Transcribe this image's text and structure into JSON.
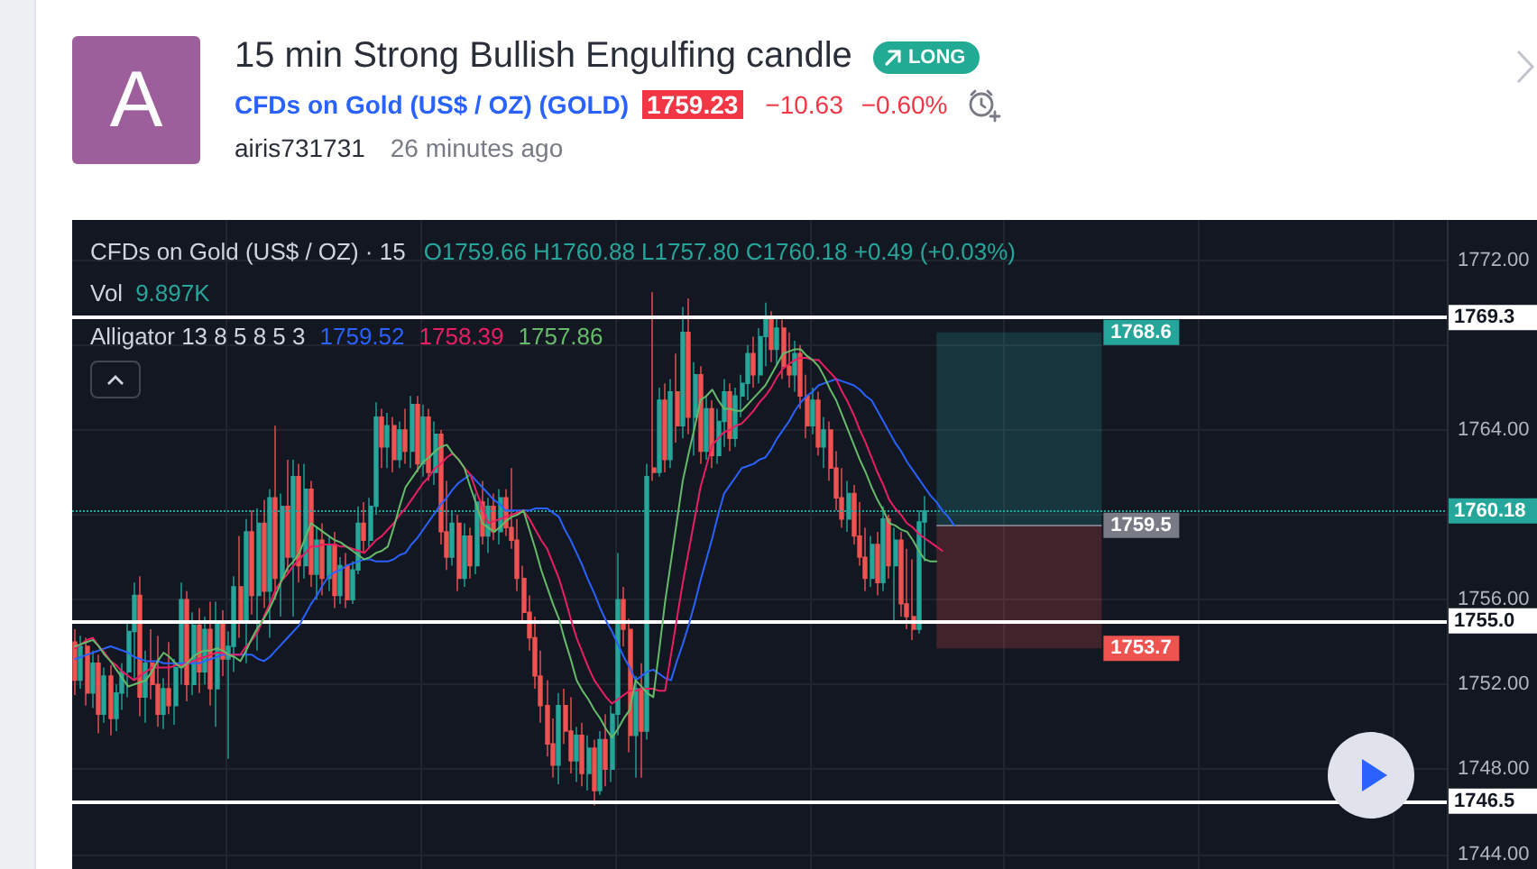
{
  "chart_data": {
    "type": "candlestick",
    "title": "15 min Strong Bullish Engulfing candle",
    "subtitle": "CFDs on Gold (US$ / OZ) (GOLD)",
    "annotations": [
      "A",
      "LONG",
      "1759.23",
      "−10.63",
      "−0.60%",
      "airis731731",
      "26 minutes ago",
      "CFDs on Gold (US$ / OZ) · 15",
      "O1759.66 H1760.88 L1757.80 C1760.18 +0.49 (+0.03%)",
      "Vol 9.897K",
      "Alligator 13 8 5 8 5 3",
      "1759.52",
      "1758.39",
      "1757.86"
    ],
    "categories": [
      null,
      null,
      null,
      null,
      null,
      null,
      null,
      null,
      null,
      null,
      null,
      null,
      null,
      null,
      null,
      null,
      null,
      null,
      null,
      null,
      null,
      null,
      null,
      null,
      null,
      null,
      null,
      null,
      null,
      null,
      null,
      null,
      null,
      null,
      null,
      null,
      null,
      null,
      null,
      null,
      null,
      null,
      null,
      null,
      null,
      null,
      null,
      null,
      null,
      null,
      null,
      null,
      null,
      null,
      null,
      null,
      null,
      null,
      null,
      null,
      null,
      null,
      null,
      null,
      null,
      null,
      null,
      null,
      null,
      null,
      null,
      null,
      null,
      null,
      null,
      null,
      null,
      null,
      null,
      null,
      null,
      null,
      null,
      null,
      null,
      null,
      null,
      null,
      null,
      null,
      null,
      null,
      null,
      null,
      null,
      null,
      null,
      null,
      null,
      null,
      null,
      null,
      null,
      null,
      null,
      null,
      null,
      null,
      null,
      null,
      null,
      null,
      null,
      null,
      null,
      null,
      null,
      null,
      null,
      null,
      null,
      null,
      null,
      null,
      null,
      null,
      null,
      null,
      null,
      null,
      null,
      null,
      null,
      null,
      null,
      null,
      null,
      null,
      null,
      null,
      null,
      null,
      null,
      null,
      null,
      null,
      null,
      null,
      null,
      null,
      null,
      null,
      null,
      null,
      null,
      null,
      null,
      null,
      null,
      null,
      null,
      null,
      null,
      null,
      null,
      null,
      null,
      null,
      null,
      null,
      null,
      null,
      null,
      null,
      null,
      null,
      null,
      null,
      null,
      null,
      null,
      null,
      null,
      null,
      null,
      null,
      null,
      null,
      null,
      null,
      null,
      null,
      null,
      null,
      null,
      null,
      null,
      null,
      null,
      null,
      null,
      null,
      null,
      null,
      null,
      null,
      null,
      null,
      null,
      null,
      null,
      null,
      null,
      null,
      null,
      null,
      null,
      null,
      null,
      null,
      null,
      null,
      null,
      null,
      null,
      null,
      null,
      null,
      null,
      null,
      null,
      null,
      null
    ],
    "ohlc": [
      [
        1754.0,
        1754.6,
        1751.5,
        1752.2
      ],
      [
        1752.2,
        1754.3,
        1751.8,
        1753.8
      ],
      [
        1753.8,
        1754.2,
        1751.0,
        1751.6
      ],
      [
        1751.6,
        1753.6,
        1750.9,
        1753.0
      ],
      [
        1753.0,
        1753.4,
        1749.7,
        1750.6
      ],
      [
        1750.6,
        1752.8,
        1750.2,
        1752.4
      ],
      [
        1752.4,
        1752.9,
        1749.6,
        1750.4
      ],
      [
        1750.4,
        1752.0,
        1749.8,
        1751.6
      ],
      [
        1751.6,
        1753.0,
        1750.8,
        1752.6
      ],
      [
        1752.6,
        1754.9,
        1751.4,
        1754.5
      ],
      [
        1754.5,
        1756.8,
        1752.2,
        1756.2
      ],
      [
        1756.2,
        1757.1,
        1750.5,
        1751.4
      ],
      [
        1751.4,
        1753.6,
        1750.2,
        1753.0
      ],
      [
        1753.0,
        1754.6,
        1751.3,
        1752.0
      ],
      [
        1752.0,
        1754.3,
        1750.0,
        1750.6
      ],
      [
        1750.6,
        1752.3,
        1749.9,
        1751.8
      ],
      [
        1751.8,
        1754.0,
        1750.6,
        1751.0
      ],
      [
        1751.0,
        1753.2,
        1750.1,
        1752.8
      ],
      [
        1752.8,
        1756.8,
        1752.0,
        1756.0
      ],
      [
        1756.0,
        1756.4,
        1751.2,
        1752.0
      ],
      [
        1752.0,
        1755.4,
        1751.5,
        1754.8
      ],
      [
        1754.8,
        1755.6,
        1751.6,
        1752.6
      ],
      [
        1752.6,
        1755.2,
        1752.0,
        1754.6
      ],
      [
        1754.6,
        1755.9,
        1751.0,
        1751.8
      ],
      [
        1751.8,
        1755.9,
        1750.0,
        1755.0
      ],
      [
        1755.0,
        1755.5,
        1752.4,
        1753.2
      ],
      [
        1753.2,
        1754.5,
        1748.5,
        1753.8
      ],
      [
        1753.8,
        1757.1,
        1752.6,
        1756.6
      ],
      [
        1756.6,
        1759.0,
        1754.2,
        1755.0
      ],
      [
        1755.0,
        1759.8,
        1753.0,
        1759.2
      ],
      [
        1759.2,
        1760.2,
        1755.3,
        1756.2
      ],
      [
        1756.2,
        1760.3,
        1753.6,
        1759.6
      ],
      [
        1759.6,
        1760.7,
        1755.6,
        1756.4
      ],
      [
        1756.4,
        1761.2,
        1754.2,
        1760.8
      ],
      [
        1760.8,
        1764.2,
        1756.0,
        1757.0
      ],
      [
        1757.0,
        1761.0,
        1755.2,
        1760.4
      ],
      [
        1760.4,
        1762.6,
        1757.2,
        1758.0
      ],
      [
        1758.0,
        1762.6,
        1755.2,
        1761.8
      ],
      [
        1761.8,
        1762.4,
        1756.8,
        1757.6
      ],
      [
        1757.6,
        1762.4,
        1757.0,
        1761.2
      ],
      [
        1761.2,
        1761.6,
        1756.6,
        1757.2
      ],
      [
        1757.2,
        1759.4,
        1756.0,
        1758.8
      ],
      [
        1758.8,
        1759.6,
        1756.2,
        1757.0
      ],
      [
        1757.0,
        1759.0,
        1756.4,
        1758.6
      ],
      [
        1758.6,
        1759.2,
        1755.6,
        1756.2
      ],
      [
        1756.2,
        1758.0,
        1755.8,
        1757.6
      ],
      [
        1757.6,
        1758.2,
        1755.6,
        1756.0
      ],
      [
        1756.0,
        1757.8,
        1755.8,
        1757.4
      ],
      [
        1757.4,
        1760.4,
        1757.2,
        1759.6
      ],
      [
        1759.6,
        1760.6,
        1758.2,
        1758.8
      ],
      [
        1758.8,
        1760.8,
        1758.4,
        1760.4
      ],
      [
        1760.4,
        1765.3,
        1760.0,
        1764.6
      ],
      [
        1764.6,
        1765.0,
        1762.2,
        1763.2
      ],
      [
        1763.2,
        1764.8,
        1762.2,
        1764.2
      ],
      [
        1764.2,
        1764.6,
        1762.0,
        1762.6
      ],
      [
        1762.6,
        1764.4,
        1762.2,
        1764.0
      ],
      [
        1764.0,
        1765.0,
        1762.4,
        1763.0
      ],
      [
        1763.0,
        1765.6,
        1762.2,
        1765.2
      ],
      [
        1765.2,
        1765.6,
        1762.0,
        1762.4
      ],
      [
        1762.4,
        1765.2,
        1761.8,
        1764.6
      ],
      [
        1764.6,
        1765.0,
        1761.6,
        1762.0
      ],
      [
        1762.0,
        1764.4,
        1761.4,
        1763.8
      ],
      [
        1763.8,
        1764.0,
        1758.6,
        1759.2
      ],
      [
        1759.2,
        1761.6,
        1757.4,
        1758.0
      ],
      [
        1758.0,
        1760.2,
        1757.6,
        1759.6
      ],
      [
        1759.6,
        1760.0,
        1756.4,
        1757.0
      ],
      [
        1757.0,
        1759.6,
        1756.6,
        1759.0
      ],
      [
        1759.0,
        1759.4,
        1757.0,
        1757.6
      ],
      [
        1757.6,
        1761.0,
        1757.2,
        1760.6
      ],
      [
        1760.6,
        1761.6,
        1758.6,
        1759.0
      ],
      [
        1759.0,
        1760.8,
        1758.2,
        1760.4
      ],
      [
        1760.4,
        1761.0,
        1758.8,
        1759.2
      ],
      [
        1759.2,
        1761.2,
        1758.6,
        1760.8
      ],
      [
        1760.8,
        1761.2,
        1759.0,
        1759.4
      ],
      [
        1759.4,
        1762.2,
        1758.4,
        1758.8
      ],
      [
        1758.8,
        1759.8,
        1756.4,
        1757.0
      ],
      [
        1757.0,
        1757.6,
        1755.0,
        1755.4
      ],
      [
        1755.4,
        1756.2,
        1753.6,
        1754.2
      ],
      [
        1754.2,
        1755.2,
        1751.8,
        1752.4
      ],
      [
        1752.4,
        1753.6,
        1750.2,
        1751.0
      ],
      [
        1751.0,
        1752.2,
        1748.6,
        1749.2
      ],
      [
        1749.2,
        1750.4,
        1747.6,
        1748.2
      ],
      [
        1748.2,
        1751.6,
        1747.3,
        1751.0
      ],
      [
        1751.0,
        1751.8,
        1749.2,
        1749.8
      ],
      [
        1749.8,
        1751.4,
        1747.8,
        1748.4
      ],
      [
        1748.4,
        1750.0,
        1747.4,
        1749.6
      ],
      [
        1749.6,
        1750.2,
        1747.2,
        1747.8
      ],
      [
        1747.8,
        1749.6,
        1747.0,
        1749.0
      ],
      [
        1749.0,
        1749.4,
        1746.3,
        1747.0
      ],
      [
        1747.0,
        1749.8,
        1746.8,
        1749.4
      ],
      [
        1749.4,
        1750.6,
        1747.2,
        1748.0
      ],
      [
        1748.0,
        1751.0,
        1747.4,
        1750.6
      ],
      [
        1750.6,
        1758.2,
        1749.6,
        1756.0
      ],
      [
        1756.0,
        1756.6,
        1753.8,
        1754.6
      ],
      [
        1754.6,
        1755.1,
        1748.8,
        1749.6
      ],
      [
        1749.6,
        1752.4,
        1747.6,
        1751.8
      ],
      [
        1751.8,
        1753.0,
        1747.6,
        1749.8
      ],
      [
        1749.8,
        1762.4,
        1749.4,
        1761.8
      ],
      [
        1762.2,
        1770.5,
        1761.6,
        1762.0
      ],
      [
        1762.0,
        1766.0,
        1761.8,
        1765.4
      ],
      [
        1765.4,
        1766.2,
        1762.0,
        1762.6
      ],
      [
        1762.6,
        1766.4,
        1762.2,
        1765.8
      ],
      [
        1765.8,
        1767.6,
        1763.4,
        1764.2
      ],
      [
        1764.2,
        1769.8,
        1763.6,
        1768.6
      ],
      [
        1768.6,
        1770.2,
        1763.8,
        1764.6
      ],
      [
        1764.6,
        1767.2,
        1762.8,
        1766.6
      ],
      [
        1766.6,
        1767.0,
        1762.4,
        1763.0
      ],
      [
        1763.0,
        1765.6,
        1762.6,
        1765.0
      ],
      [
        1765.0,
        1765.4,
        1762.2,
        1762.8
      ],
      [
        1762.8,
        1765.0,
        1762.4,
        1764.4
      ],
      [
        1764.4,
        1766.4,
        1763.2,
        1765.8
      ],
      [
        1765.8,
        1766.2,
        1763.0,
        1763.6
      ],
      [
        1763.6,
        1766.0,
        1763.2,
        1765.6
      ],
      [
        1765.6,
        1766.6,
        1764.6,
        1766.2
      ],
      [
        1766.2,
        1768.0,
        1765.4,
        1767.6
      ],
      [
        1767.6,
        1768.4,
        1766.0,
        1766.6
      ],
      [
        1766.6,
        1768.8,
        1766.2,
        1768.4
      ],
      [
        1768.4,
        1770.0,
        1767.0,
        1769.2
      ],
      [
        1769.2,
        1769.6,
        1767.2,
        1767.8
      ],
      [
        1767.8,
        1769.4,
        1767.0,
        1768.8
      ],
      [
        1768.8,
        1769.2,
        1766.4,
        1767.0
      ],
      [
        1767.0,
        1768.6,
        1766.0,
        1766.6
      ],
      [
        1766.6,
        1768.2,
        1765.8,
        1767.6
      ],
      [
        1767.6,
        1768.0,
        1765.0,
        1765.6
      ],
      [
        1765.6,
        1766.6,
        1763.6,
        1764.2
      ],
      [
        1764.2,
        1766.0,
        1763.8,
        1765.4
      ],
      [
        1765.4,
        1765.8,
        1762.8,
        1763.2
      ],
      [
        1763.2,
        1764.6,
        1762.2,
        1764.0
      ],
      [
        1764.0,
        1764.4,
        1761.6,
        1762.2
      ],
      [
        1762.2,
        1763.0,
        1760.2,
        1760.8
      ],
      [
        1760.8,
        1762.2,
        1759.4,
        1759.8
      ],
      [
        1759.8,
        1761.6,
        1759.2,
        1761.0
      ],
      [
        1761.0,
        1761.4,
        1758.6,
        1759.0
      ],
      [
        1759.0,
        1760.6,
        1757.6,
        1758.0
      ],
      [
        1758.0,
        1759.4,
        1756.4,
        1757.0
      ],
      [
        1757.0,
        1759.0,
        1756.6,
        1758.6
      ],
      [
        1758.6,
        1759.2,
        1756.2,
        1756.8
      ],
      [
        1756.8,
        1760.4,
        1756.4,
        1759.8
      ],
      [
        1759.8,
        1760.0,
        1757.0,
        1757.6
      ],
      [
        1757.6,
        1759.4,
        1755.0,
        1758.8
      ],
      [
        1758.8,
        1759.2,
        1755.2,
        1755.8
      ],
      [
        1755.8,
        1758.4,
        1754.6,
        1755.2
      ],
      [
        1755.2,
        1757.9,
        1754.1,
        1754.6
      ],
      [
        1754.6,
        1760.2,
        1754.4,
        1759.66
      ],
      [
        1759.66,
        1760.88,
        1757.8,
        1760.18
      ],
      null,
      null,
      null,
      null,
      null,
      null,
      null,
      null,
      null,
      null,
      null,
      null,
      null,
      null,
      null,
      null,
      null,
      null,
      null,
      null,
      null,
      null,
      null,
      null,
      null,
      null,
      null,
      null,
      null,
      null,
      null,
      null,
      null,
      null,
      null,
      null,
      null,
      null,
      null,
      null,
      null,
      null,
      null,
      null,
      null,
      null,
      null,
      null,
      null,
      null,
      null,
      null,
      null,
      null,
      null,
      null,
      null,
      null,
      null,
      null,
      null,
      null,
      null,
      null,
      null,
      null,
      null,
      null,
      null,
      null,
      null,
      null,
      null,
      null,
      null,
      null,
      null,
      null,
      null,
      null,
      null,
      null,
      null,
      null,
      null,
      null,
      null,
      null
    ],
    "colors": [
      "#ef5350",
      "#26a69a",
      "#ef5350",
      "#26a69a",
      "#ef5350",
      "#26a69a",
      "#ef5350",
      "#26a69a",
      "#26a69a",
      "#26a69a",
      "#26a69a",
      "#ef5350",
      "#26a69a",
      "#ef5350",
      "#ef5350",
      "#26a69a",
      "#ef5350",
      "#26a69a",
      "#26a69a",
      "#ef5350",
      "#26a69a",
      "#ef5350",
      "#26a69a",
      "#ef5350",
      "#26a69a",
      "#ef5350",
      "#26a69a",
      "#26a69a",
      "#ef5350",
      "#26a69a",
      "#ef5350",
      "#26a69a",
      "#ef5350",
      "#26a69a",
      "#ef5350",
      "#26a69a",
      "#ef5350",
      "#26a69a",
      "#ef5350",
      "#26a69a",
      "#ef5350",
      "#26a69a",
      "#ef5350",
      "#26a69a",
      "#ef5350",
      "#26a69a",
      "#ef5350",
      "#26a69a",
      "#26a69a",
      "#ef5350",
      "#26a69a",
      "#26a69a",
      "#ef5350",
      "#26a69a",
      "#ef5350",
      "#26a69a",
      "#ef5350",
      "#26a69a",
      "#ef5350",
      "#26a69a",
      "#ef5350",
      "#26a69a",
      "#ef5350",
      "#ef5350",
      "#26a69a",
      "#ef5350",
      "#26a69a",
      "#ef5350",
      "#26a69a",
      "#ef5350",
      "#26a69a",
      "#ef5350",
      "#26a69a",
      "#ef5350",
      "#ef5350",
      "#ef5350",
      "#ef5350",
      "#ef5350",
      "#ef5350",
      "#ef5350",
      "#ef5350",
      "#ef5350",
      "#26a69a",
      "#ef5350",
      "#ef5350",
      "#26a69a",
      "#ef5350",
      "#26a69a",
      "#ef5350",
      "#26a69a",
      "#ef5350",
      "#26a69a",
      "#26a69a",
      "#ef5350",
      "#ef5350",
      "#26a69a",
      "#ef5350",
      "#26a69a",
      "#ef5350",
      "#26a69a",
      "#ef5350",
      "#26a69a",
      "#ef5350",
      "#26a69a",
      "#ef5350",
      "#26a69a",
      "#ef5350",
      "#26a69a",
      "#ef5350",
      "#26a69a",
      "#26a69a",
      "#ef5350",
      "#26a69a",
      "#26a69a",
      "#26a69a",
      "#ef5350",
      "#26a69a",
      "#26a69a",
      "#ef5350",
      "#26a69a",
      "#ef5350",
      "#ef5350",
      "#26a69a",
      "#ef5350",
      "#ef5350",
      "#26a69a",
      "#ef5350",
      "#26a69a",
      "#ef5350",
      "#ef5350",
      "#ef5350",
      "#26a69a",
      "#ef5350",
      "#ef5350",
      "#ef5350",
      "#26a69a",
      "#ef5350",
      "#26a69a",
      "#ef5350",
      "#26a69a",
      "#ef5350",
      "#ef5350",
      "#ef5350",
      "#26a69a",
      "#26a69a",
      null,
      null,
      null,
      null,
      null,
      null,
      null,
      null,
      null,
      null,
      null,
      null,
      null,
      null,
      null,
      null,
      null,
      null,
      null,
      null,
      null,
      null,
      null,
      null,
      null,
      null,
      null,
      null,
      null,
      null,
      null,
      null,
      null,
      null,
      null,
      null,
      null,
      null,
      null,
      null,
      null,
      null,
      null,
      null,
      null,
      null,
      null,
      null,
      null,
      null,
      null,
      null,
      null,
      null,
      null,
      null,
      null,
      null,
      null,
      null,
      null,
      null,
      null,
      null,
      null,
      null,
      null,
      null,
      null,
      null,
      null,
      null,
      null,
      null,
      null,
      null,
      null,
      null,
      null,
      null,
      null,
      null,
      null,
      null,
      null,
      null,
      null,
      null
    ],
    "series": [
      {
        "type": "line",
        "color": "#2962ff",
        "values": [
          1753.2,
          1753.3,
          1753.4,
          1753.5,
          1753.6,
          1753.7,
          1753.8,
          1753.7,
          1753.6,
          1753.5,
          1753.3,
          1753.2,
          1753.1,
          1753.1,
          1753.1,
          1753.0,
          1753.0,
          1753.0,
          1753.0,
          1753.0,
          1753.0,
          1753.0,
          1753.1,
          1753.2,
          1753.3,
          1753.4,
          1753.4,
          1753.4,
          1753.4,
          1753.4,
          1753.4,
          1753.2,
          1753.1,
          1753.3,
          1753.6,
          1753.9,
          1754.2,
          1754.5,
          1754.8,
          1755.3,
          1755.8,
          1756.2,
          1756.7,
          1757.1,
          1757.3,
          1757.4,
          1757.6,
          1757.7,
          1757.8,
          1757.9,
          1757.9,
          1757.8,
          1757.8,
          1757.8,
          1757.9,
          1758.1,
          1758.2,
          1758.6,
          1758.9,
          1759.3,
          1759.7,
          1760.1,
          1760.5,
          1760.8,
          1761.2,
          1761.5,
          1761.7,
          1761.9,
          1761.6,
          1761.3,
          1761.0,
          1760.7,
          1760.5,
          1760.2,
          1760.2,
          1760.2,
          1760.2,
          1760.2,
          1760.3,
          1760.3,
          1760.3,
          1760.1,
          1759.9,
          1759.3,
          1758.8,
          1758.2,
          1757.6,
          1756.9,
          1756.3,
          1755.6,
          1755.0,
          1754.5,
          1753.9,
          1753.3,
          1752.8,
          1752.2,
          1752.4,
          1752.6,
          1752.7,
          1752.5,
          1752.3,
          1752.2,
          1753.1,
          1753.9,
          1754.8,
          1755.8,
          1756.9,
          1757.9,
          1758.9,
          1760.0,
          1761.0,
          1761.4,
          1761.8,
          1762.2,
          1762.3,
          1762.4,
          1762.6,
          1762.7,
          1763.1,
          1763.6,
          1764.0,
          1764.4,
          1764.9,
          1765.3,
          1765.6,
          1765.8,
          1766.1,
          1766.2,
          1766.3,
          1766.4,
          1766.3,
          1766.2,
          1766.1,
          1765.9,
          1765.6,
          1765.4,
          1764.9,
          1764.4,
          1763.9,
          1763.4,
          1763.0,
          1762.5,
          1762.1,
          1761.7,
          1761.3,
          1760.9,
          1760.6,
          1760.2,
          1759.9,
          1759.5,
          null,
          null,
          null,
          null,
          null,
          null,
          null,
          null,
          null,
          null,
          null,
          null,
          null,
          null,
          null,
          null,
          null,
          null,
          null,
          null,
          null,
          null,
          null,
          null,
          null,
          null,
          null,
          null,
          null,
          null,
          null,
          null,
          null,
          null,
          null,
          null,
          null,
          null,
          null,
          null,
          null,
          null,
          null,
          null,
          null,
          null,
          null,
          null,
          null,
          null,
          null,
          null,
          null,
          null,
          null,
          null,
          null,
          null,
          null,
          null,
          null,
          null,
          null,
          null,
          null,
          null,
          null,
          null,
          null,
          null,
          null,
          null,
          null,
          null,
          null,
          null,
          null,
          null,
          null,
          null,
          null,
          null,
          null
        ]
      },
      {
        "type": "line",
        "color": "#e91e63",
        "values": [
          1753.7,
          1753.9,
          1754.1,
          1754.2,
          1753.8,
          1753.5,
          1753.1,
          1752.9,
          1752.6,
          1752.4,
          1752.2,
          1752.4,
          1752.6,
          1752.8,
          1752.8,
          1752.8,
          1752.8,
          1752.9,
          1752.9,
          1753.0,
          1753.1,
          1753.2,
          1753.3,
          1753.4,
          1753.5,
          1753.5,
          1753.4,
          1753.4,
          1753.4,
          1753.8,
          1754.1,
          1754.5,
          1755.2,
          1755.8,
          1756.5,
          1756.9,
          1757.2,
          1757.6,
          1757.9,
          1758.2,
          1758.5,
          1758.5,
          1758.6,
          1758.6,
          1758.6,
          1758.5,
          1758.5,
          1758.4,
          1758.3,
          1758.2,
          1758.5,
          1758.8,
          1759.0,
          1759.3,
          1759.6,
          1760.0,
          1760.3,
          1760.7,
          1761.1,
          1761.5,
          1761.8,
          1762.2,
          1762.4,
          1762.7,
          1762.9,
          1762.6,
          1762.2,
          1761.9,
          1761.1,
          1760.4,
          1759.6,
          1759.7,
          1759.8,
          1759.9,
          1760.0,
          1760.1,
          1760.2,
          1759.8,
          1759.3,
          1758.8,
          1758.4,
          1757.7,
          1757.0,
          1756.1,
          1755.1,
          1754.2,
          1753.5,
          1752.8,
          1752.2,
          1751.8,
          1751.4,
          1751.1,
          1751.3,
          1751.5,
          1751.7,
          1751.7,
          1751.8,
          1751.8,
          1751.8,
          1751.7,
          1751.7,
          1753.4,
          1755.1,
          1756.8,
          1758.3,
          1759.8,
          1761.3,
          1762.3,
          1763.3,
          1763.6,
          1763.9,
          1764.0,
          1764.2,
          1764.3,
          1764.6,
          1764.9,
          1765.3,
          1765.6,
          1766.0,
          1766.5,
          1766.9,
          1767.1,
          1767.3,
          1767.4,
          1767.4,
          1767.3,
          1767.3,
          1767.0,
          1766.7,
          1766.4,
          1765.8,
          1765.3,
          1764.7,
          1764.0,
          1763.4,
          1762.7,
          1762.0,
          1761.4,
          1760.7,
          1760.3,
          1760.0,
          1759.6,
          1759.4,
          1759.1,
          1758.9,
          1758.7,
          1758.5,
          1758.3,
          null,
          null,
          null,
          null,
          null,
          null,
          null,
          null,
          null,
          null,
          null,
          null,
          null,
          null,
          null,
          null,
          null,
          null,
          null,
          null,
          null,
          null,
          null,
          null,
          null,
          null,
          null,
          null,
          null,
          null,
          null,
          null,
          null,
          null,
          null,
          null,
          null,
          null,
          null,
          null,
          null,
          null,
          null,
          null,
          null,
          null,
          null,
          null,
          null,
          null,
          null,
          null,
          null,
          null,
          null,
          null,
          null,
          null,
          null,
          null,
          null,
          null,
          null,
          null,
          null,
          null,
          null,
          null,
          null,
          null,
          null,
          null,
          null,
          null,
          null,
          null,
          null,
          null,
          null,
          null,
          null,
          null,
          null,
          null,
          null
        ]
      },
      {
        "type": "line",
        "color": "#66bb6a",
        "values": [
          1753.8,
          1753.9,
          1754.0,
          1754.1,
          1753.8,
          1753.4,
          1753.1,
          1752.7,
          1752.3,
          1751.9,
          1752.0,
          1752.1,
          1752.2,
          1752.6,
          1753.1,
          1753.5,
          1753.3,
          1753.0,
          1752.8,
          1753.0,
          1753.3,
          1753.5,
          1753.6,
          1753.6,
          1753.7,
          1753.6,
          1753.4,
          1753.3,
          1753.1,
          1753.6,
          1754.2,
          1754.7,
          1755.1,
          1755.6,
          1756.2,
          1756.9,
          1757.5,
          1757.8,
          1758.2,
          1758.9,
          1759.6,
          1759.4,
          1759.2,
          1759.0,
          1758.8,
          1758.7,
          1758.5,
          1758.3,
          1758.1,
          1757.9,
          1758.0,
          1758.2,
          1758.3,
          1758.5,
          1759.4,
          1760.4,
          1761.3,
          1761.7,
          1762.1,
          1762.5,
          1762.7,
          1763.0,
          1763.2,
          1763.3,
          1762.9,
          1762.6,
          1762.2,
          1761.3,
          1760.5,
          1759.6,
          1759.4,
          1759.2,
          1759.4,
          1759.7,
          1759.9,
          1760.0,
          1760.2,
          1759.3,
          1758.4,
          1757.4,
          1756.6,
          1755.8,
          1755.1,
          1754.1,
          1753.2,
          1752.2,
          1751.7,
          1751.3,
          1750.8,
          1750.4,
          1749.9,
          1749.5,
          1749.9,
          1750.4,
          1750.8,
          1752.2,
          1751.9,
          1751.6,
          1751.4,
          1753.6,
          1755.9,
          1757.8,
          1759.7,
          1761.6,
          1762.9,
          1764.1,
          1765.4,
          1765.6,
          1765.9,
          1765.4,
          1765.0,
          1765.0,
          1764.9,
          1764.9,
          1765.2,
          1765.5,
          1765.8,
          1766.1,
          1766.6,
          1767.1,
          1767.6,
          1767.7,
          1767.8,
          1767.8,
          1767.5,
          1767.3,
          1767.0,
          1766.5,
          1765.9,
          1765.4,
          1764.7,
          1764.0,
          1763.3,
          1762.6,
          1762.0,
          1761.3,
          1760.7,
          1760.2,
          1759.6,
          1759.5,
          1759.3,
          1759.2,
          1758.8,
          1758.3,
          1757.9,
          1757.8,
          1757.8,
          null,
          null,
          null,
          null,
          null,
          null,
          null,
          null,
          null,
          null,
          null,
          null,
          null,
          null,
          null,
          null,
          null,
          null,
          null,
          null,
          null,
          null,
          null,
          null,
          null,
          null,
          null,
          null,
          null,
          null,
          null,
          null,
          null,
          null,
          null,
          null,
          null,
          null,
          null,
          null,
          null,
          null,
          null,
          null,
          null,
          null,
          null,
          null,
          null,
          null,
          null,
          null,
          null,
          null,
          null,
          null,
          null,
          null,
          null,
          null,
          null,
          null,
          null,
          null,
          null,
          null,
          null,
          null,
          null,
          null,
          null,
          null,
          null,
          null,
          null,
          null,
          null,
          null,
          null,
          null,
          null,
          null,
          null,
          null,
          null,
          null
        ]
      }
    ],
    "ylim": [
      1743.3,
      1773.9
    ],
    "yticks": [
      {
        "value": 1744,
        "label": "1744.00"
      },
      {
        "value": 1748,
        "label": "1748.00"
      },
      {
        "value": 1752,
        "label": "1752.00"
      },
      {
        "value": 1756,
        "label": "1756.00"
      },
      {
        "value": 1760,
        "label": null
      },
      {
        "value": 1764,
        "label": "1764.00"
      },
      {
        "value": 1768,
        "label": null
      },
      {
        "value": 1772,
        "label": "1772.00"
      }
    ],
    "grid": true,
    "tick_labels": "y",
    "ref_lines": [
      {
        "axis": "y",
        "value": 1769.3,
        "label": "1769.3",
        "color": "#ffffff"
      },
      {
        "axis": "y",
        "value": 1755.0,
        "label": "1755.0",
        "color": "#ffffff"
      },
      {
        "axis": "y",
        "value": 1746.5,
        "label": "1746.5",
        "color": "#ffffff"
      },
      {
        "axis": "y",
        "value": 1760.18,
        "label": "1760.18",
        "color": "#26a69a",
        "line_style": "dotted"
      },
      {
        "axis": "y",
        "value": 1759.5,
        "label": "1759.5",
        "color": "#787b86"
      }
    ],
    "bands": [
      {
        "axis": "y",
        "from": 1759.5,
        "to": 1768.6,
        "label": "1768.6",
        "color": "#26a69a"
      },
      {
        "axis": "y",
        "from": 1753.7,
        "to": 1759.5,
        "label": "1753.7",
        "color": "#ef5350"
      }
    ]
  }
}
